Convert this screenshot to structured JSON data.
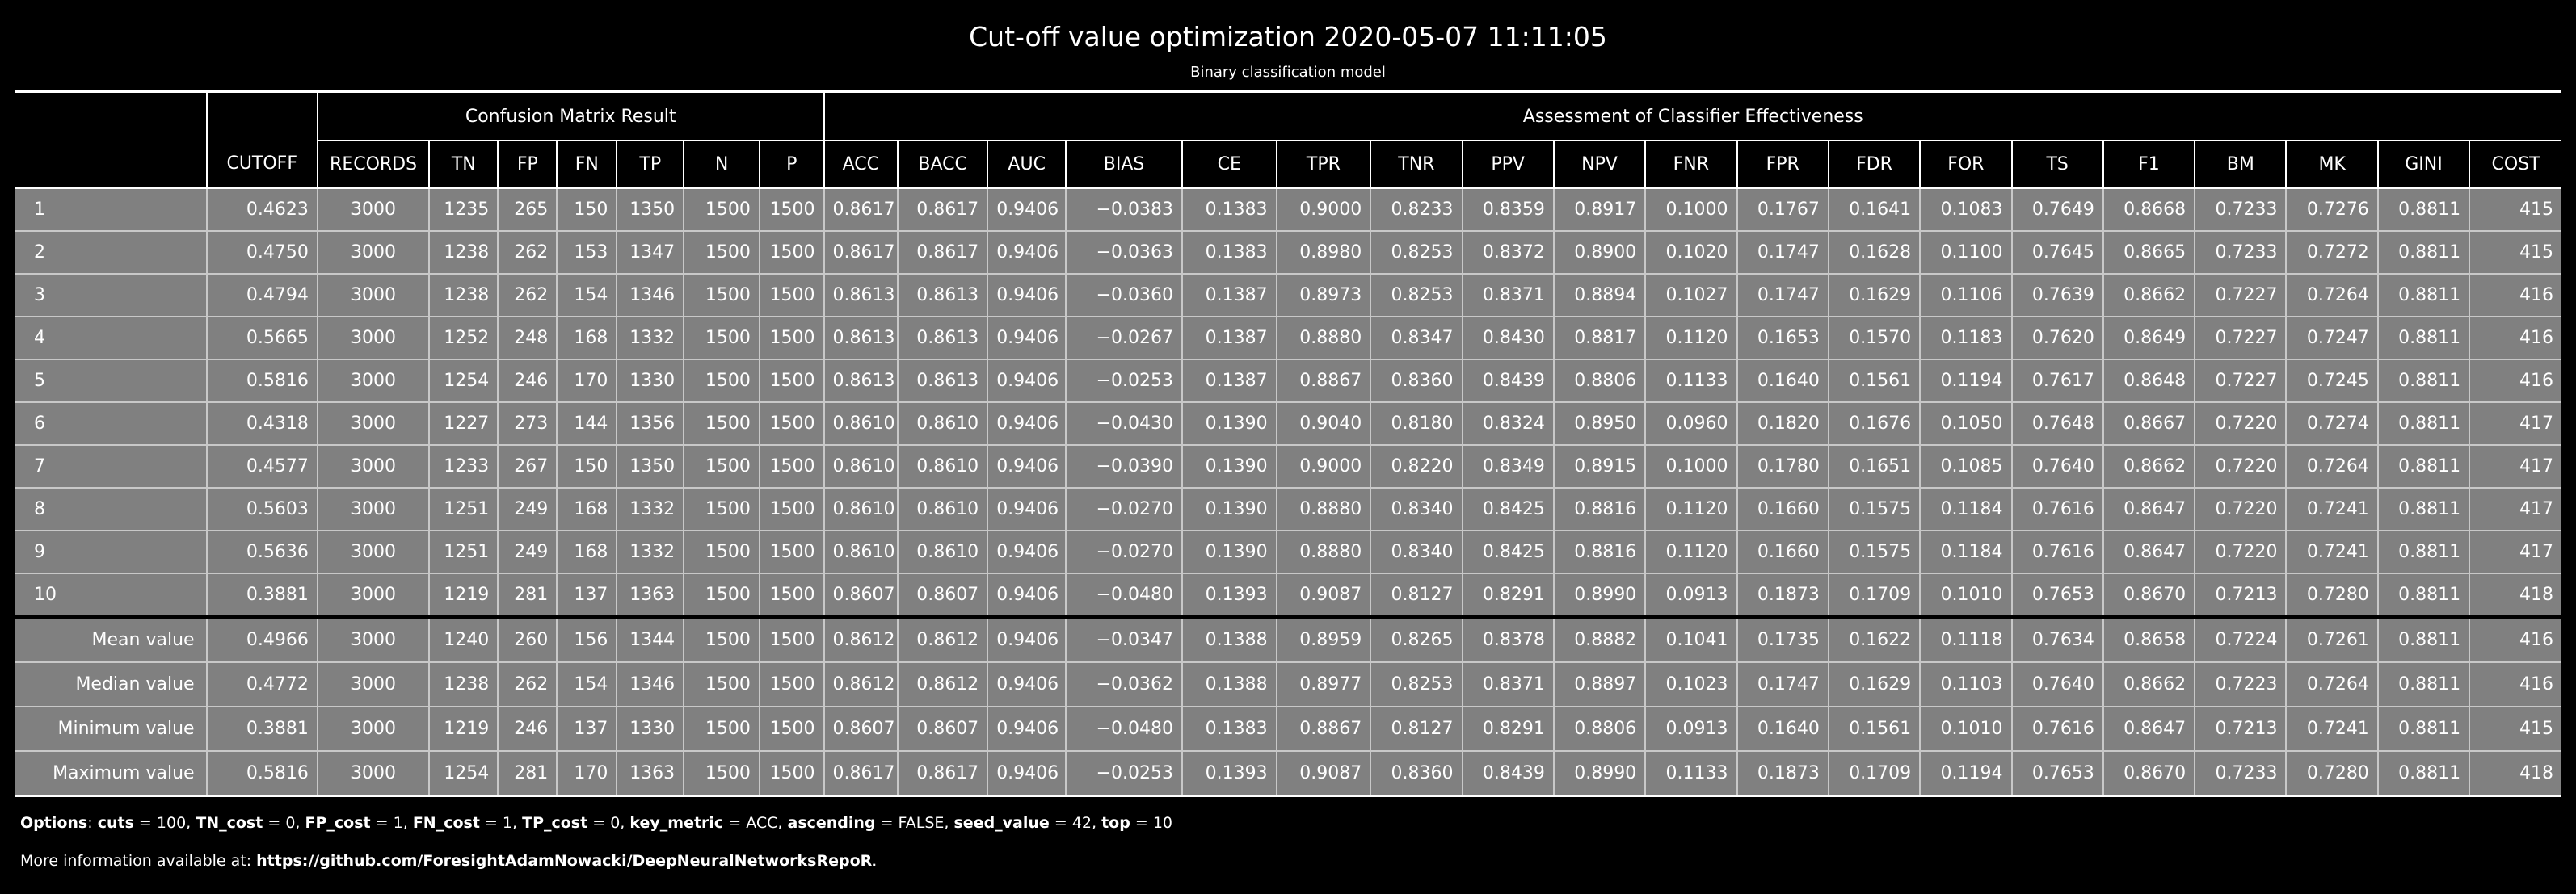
{
  "title": "Cut-off value optimization 2020-05-07 11:11:05",
  "subtitle": "Binary classification model",
  "groups": {
    "confusion": "Confusion Matrix Result",
    "assessment": "Assessment of Classifier Effectiveness"
  },
  "columns": [
    "",
    "CUTOFF",
    "RECORDS",
    "TN",
    "FP",
    "FN",
    "TP",
    "N",
    "P",
    "ACC",
    "BACC",
    "AUC",
    "BIAS",
    "CE",
    "TPR",
    "TNR",
    "PPV",
    "NPV",
    "FNR",
    "FPR",
    "FDR",
    "FOR",
    "TS",
    "F1",
    "BM",
    "MK",
    "GINI",
    "COST"
  ],
  "rows": [
    [
      "1",
      "0.4623",
      "3000",
      "1235",
      "265",
      "150",
      "1350",
      "1500",
      "1500",
      "0.8617",
      "0.8617",
      "0.9406",
      "−0.0383",
      "0.1383",
      "0.9000",
      "0.8233",
      "0.8359",
      "0.8917",
      "0.1000",
      "0.1767",
      "0.1641",
      "0.1083",
      "0.7649",
      "0.8668",
      "0.7233",
      "0.7276",
      "0.8811",
      "415"
    ],
    [
      "2",
      "0.4750",
      "3000",
      "1238",
      "262",
      "153",
      "1347",
      "1500",
      "1500",
      "0.8617",
      "0.8617",
      "0.9406",
      "−0.0363",
      "0.1383",
      "0.8980",
      "0.8253",
      "0.8372",
      "0.8900",
      "0.1020",
      "0.1747",
      "0.1628",
      "0.1100",
      "0.7645",
      "0.8665",
      "0.7233",
      "0.7272",
      "0.8811",
      "415"
    ],
    [
      "3",
      "0.4794",
      "3000",
      "1238",
      "262",
      "154",
      "1346",
      "1500",
      "1500",
      "0.8613",
      "0.8613",
      "0.9406",
      "−0.0360",
      "0.1387",
      "0.8973",
      "0.8253",
      "0.8371",
      "0.8894",
      "0.1027",
      "0.1747",
      "0.1629",
      "0.1106",
      "0.7639",
      "0.8662",
      "0.7227",
      "0.7264",
      "0.8811",
      "416"
    ],
    [
      "4",
      "0.5665",
      "3000",
      "1252",
      "248",
      "168",
      "1332",
      "1500",
      "1500",
      "0.8613",
      "0.8613",
      "0.9406",
      "−0.0267",
      "0.1387",
      "0.8880",
      "0.8347",
      "0.8430",
      "0.8817",
      "0.1120",
      "0.1653",
      "0.1570",
      "0.1183",
      "0.7620",
      "0.8649",
      "0.7227",
      "0.7247",
      "0.8811",
      "416"
    ],
    [
      "5",
      "0.5816",
      "3000",
      "1254",
      "246",
      "170",
      "1330",
      "1500",
      "1500",
      "0.8613",
      "0.8613",
      "0.9406",
      "−0.0253",
      "0.1387",
      "0.8867",
      "0.8360",
      "0.8439",
      "0.8806",
      "0.1133",
      "0.1640",
      "0.1561",
      "0.1194",
      "0.7617",
      "0.8648",
      "0.7227",
      "0.7245",
      "0.8811",
      "416"
    ],
    [
      "6",
      "0.4318",
      "3000",
      "1227",
      "273",
      "144",
      "1356",
      "1500",
      "1500",
      "0.8610",
      "0.8610",
      "0.9406",
      "−0.0430",
      "0.1390",
      "0.9040",
      "0.8180",
      "0.8324",
      "0.8950",
      "0.0960",
      "0.1820",
      "0.1676",
      "0.1050",
      "0.7648",
      "0.8667",
      "0.7220",
      "0.7274",
      "0.8811",
      "417"
    ],
    [
      "7",
      "0.4577",
      "3000",
      "1233",
      "267",
      "150",
      "1350",
      "1500",
      "1500",
      "0.8610",
      "0.8610",
      "0.9406",
      "−0.0390",
      "0.1390",
      "0.9000",
      "0.8220",
      "0.8349",
      "0.8915",
      "0.1000",
      "0.1780",
      "0.1651",
      "0.1085",
      "0.7640",
      "0.8662",
      "0.7220",
      "0.7264",
      "0.8811",
      "417"
    ],
    [
      "8",
      "0.5603",
      "3000",
      "1251",
      "249",
      "168",
      "1332",
      "1500",
      "1500",
      "0.8610",
      "0.8610",
      "0.9406",
      "−0.0270",
      "0.1390",
      "0.8880",
      "0.8340",
      "0.8425",
      "0.8816",
      "0.1120",
      "0.1660",
      "0.1575",
      "0.1184",
      "0.7616",
      "0.8647",
      "0.7220",
      "0.7241",
      "0.8811",
      "417"
    ],
    [
      "9",
      "0.5636",
      "3000",
      "1251",
      "249",
      "168",
      "1332",
      "1500",
      "1500",
      "0.8610",
      "0.8610",
      "0.9406",
      "−0.0270",
      "0.1390",
      "0.8880",
      "0.8340",
      "0.8425",
      "0.8816",
      "0.1120",
      "0.1660",
      "0.1575",
      "0.1184",
      "0.7616",
      "0.8647",
      "0.7220",
      "0.7241",
      "0.8811",
      "417"
    ],
    [
      "10",
      "0.3881",
      "3000",
      "1219",
      "281",
      "137",
      "1363",
      "1500",
      "1500",
      "0.8607",
      "0.8607",
      "0.9406",
      "−0.0480",
      "0.1393",
      "0.9087",
      "0.8127",
      "0.8291",
      "0.8990",
      "0.0913",
      "0.1873",
      "0.1709",
      "0.1010",
      "0.7653",
      "0.8670",
      "0.7213",
      "0.7280",
      "0.8811",
      "418"
    ]
  ],
  "summary": [
    [
      "Mean value",
      "0.4966",
      "3000",
      "1240",
      "260",
      "156",
      "1344",
      "1500",
      "1500",
      "0.8612",
      "0.8612",
      "0.9406",
      "−0.0347",
      "0.1388",
      "0.8959",
      "0.8265",
      "0.8378",
      "0.8882",
      "0.1041",
      "0.1735",
      "0.1622",
      "0.1118",
      "0.7634",
      "0.8658",
      "0.7224",
      "0.7261",
      "0.8811",
      "416"
    ],
    [
      "Median value",
      "0.4772",
      "3000",
      "1238",
      "262",
      "154",
      "1346",
      "1500",
      "1500",
      "0.8612",
      "0.8612",
      "0.9406",
      "−0.0362",
      "0.1388",
      "0.8977",
      "0.8253",
      "0.8371",
      "0.8897",
      "0.1023",
      "0.1747",
      "0.1629",
      "0.1103",
      "0.7640",
      "0.8662",
      "0.7223",
      "0.7264",
      "0.8811",
      "416"
    ],
    [
      "Minimum value",
      "0.3881",
      "3000",
      "1219",
      "246",
      "137",
      "1330",
      "1500",
      "1500",
      "0.8607",
      "0.8607",
      "0.9406",
      "−0.0480",
      "0.1383",
      "0.8867",
      "0.8127",
      "0.8291",
      "0.8806",
      "0.0913",
      "0.1640",
      "0.1561",
      "0.1010",
      "0.7616",
      "0.8647",
      "0.7213",
      "0.7241",
      "0.8811",
      "415"
    ],
    [
      "Maximum value",
      "0.5816",
      "3000",
      "1254",
      "281",
      "170",
      "1363",
      "1500",
      "1500",
      "0.8617",
      "0.8617",
      "0.9406",
      "−0.0253",
      "0.1393",
      "0.9087",
      "0.8360",
      "0.8439",
      "0.8990",
      "0.1133",
      "0.1873",
      "0.1709",
      "0.1194",
      "0.7653",
      "0.8670",
      "0.7233",
      "0.7280",
      "0.8811",
      "418"
    ]
  ],
  "footer": {
    "options_label": "Options",
    "options": [
      {
        "key": "cuts",
        "value": "100"
      },
      {
        "key": "TN_cost",
        "value": "0"
      },
      {
        "key": "FP_cost",
        "value": "1"
      },
      {
        "key": "FN_cost",
        "value": "1"
      },
      {
        "key": "TP_cost",
        "value": "0"
      },
      {
        "key": "key_metric",
        "value": "ACC"
      },
      {
        "key": "ascending",
        "value": "FALSE"
      },
      {
        "key": "seed_value",
        "value": "42"
      },
      {
        "key": "top",
        "value": "10"
      }
    ],
    "more_prefix": "More information available at: ",
    "more_link": "https://github.com/ForesightAdamNowacki/DeepNeuralNetworksRepoR",
    "more_suffix": "."
  }
}
